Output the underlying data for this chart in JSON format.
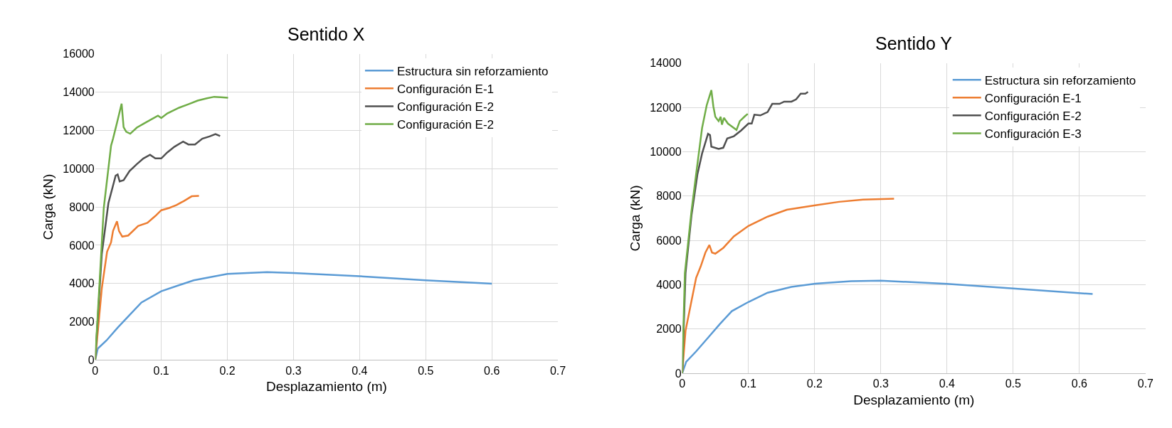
{
  "chart_data": [
    {
      "type": "line",
      "title": "Sentido X",
      "xlabel": "Desplazamiento (m)",
      "ylabel": "Carga (kN)",
      "xlim": [
        0,
        0.7
      ],
      "xticks": [
        0,
        0.1,
        0.2,
        0.3,
        0.4,
        0.5,
        0.6,
        0.7
      ],
      "ylim": [
        0,
        16000
      ],
      "yticks": [
        0,
        2000,
        4000,
        6000,
        8000,
        10000,
        12000,
        14000,
        16000
      ],
      "grid": true,
      "legend": "top right",
      "marker": "none",
      "line_style": "solid",
      "series": [
        {
          "name": "Estructura sin reforzamiento",
          "color": "#5b9bd5",
          "x": [
            0,
            0.004,
            0.017,
            0.034,
            0.052,
            0.07,
            0.1,
            0.149,
            0.2,
            0.26,
            0.3,
            0.4,
            0.5,
            0.6
          ],
          "values": [
            0,
            600,
            1020,
            1690,
            2350,
            3010,
            3600,
            4170,
            4500,
            4600,
            4550,
            4380,
            4170,
            3990
          ]
        },
        {
          "name": "Configuración E-1",
          "color": "#ed7d31",
          "x": [
            0,
            0.01,
            0.018,
            0.024,
            0.027,
            0.033,
            0.036,
            0.041,
            0.05,
            0.065,
            0.079,
            0.091,
            0.1,
            0.112,
            0.123,
            0.134,
            0.146,
            0.157
          ],
          "values": [
            0,
            3740,
            5660,
            6150,
            6750,
            7250,
            6750,
            6450,
            6510,
            7010,
            7170,
            7530,
            7830,
            7950,
            8100,
            8310,
            8560,
            8580
          ]
        },
        {
          "name": "Configuración E-2",
          "color": "#505050",
          "x": [
            0,
            0.01,
            0.02,
            0.031,
            0.034,
            0.037,
            0.043,
            0.052,
            0.063,
            0.073,
            0.083,
            0.091,
            0.1,
            0.109,
            0.12,
            0.133,
            0.141,
            0.151,
            0.162,
            0.173,
            0.182,
            0.189
          ],
          "values": [
            0,
            5540,
            8200,
            9640,
            9700,
            9340,
            9400,
            9880,
            10240,
            10540,
            10730,
            10540,
            10540,
            10850,
            11150,
            11420,
            11270,
            11270,
            11570,
            11690,
            11810,
            11710
          ]
        },
        {
          "name": "Configuración E-2",
          "color": "#70ad47",
          "x": [
            0,
            0.013,
            0.024,
            0.027,
            0.033,
            0.04,
            0.043,
            0.047,
            0.053,
            0.063,
            0.073,
            0.084,
            0.095,
            0.1,
            0.109,
            0.127,
            0.141,
            0.155,
            0.169,
            0.18,
            0.19,
            0.201
          ],
          "values": [
            0,
            7950,
            11200,
            11570,
            12400,
            13400,
            12170,
            11930,
            11830,
            12150,
            12350,
            12560,
            12770,
            12650,
            12890,
            13190,
            13370,
            13560,
            13680,
            13760,
            13740,
            13710
          ]
        }
      ]
    },
    {
      "type": "line",
      "title": "Sentido Y",
      "xlabel": "Desplazamiento (m)",
      "ylabel": "Carga (kN)",
      "xlim": [
        0,
        0.7
      ],
      "xticks": [
        0,
        0.1,
        0.2,
        0.3,
        0.4,
        0.5,
        0.6,
        0.7
      ],
      "ylim": [
        0,
        14000
      ],
      "yticks": [
        0,
        2000,
        4000,
        6000,
        8000,
        10000,
        12000,
        14000
      ],
      "grid": true,
      "legend": "top right",
      "marker": "none",
      "line_style": "solid",
      "series": [
        {
          "name": "Estructura sin reforzamiento",
          "color": "#5b9bd5",
          "x": [
            0,
            0.006,
            0.021,
            0.039,
            0.057,
            0.075,
            0.1,
            0.129,
            0.165,
            0.201,
            0.255,
            0.3,
            0.4,
            0.5,
            0.62
          ],
          "values": [
            0,
            520,
            990,
            1610,
            2230,
            2810,
            3220,
            3640,
            3900,
            4050,
            4160,
            4180,
            4040,
            3830,
            3580
          ]
        },
        {
          "name": "Configuración E-1",
          "color": "#ed7d31",
          "x": [
            0,
            0.005,
            0.014,
            0.021,
            0.028,
            0.035,
            0.041,
            0.045,
            0.05,
            0.062,
            0.078,
            0.1,
            0.129,
            0.158,
            0.201,
            0.237,
            0.273,
            0.32
          ],
          "values": [
            0,
            1920,
            3270,
            4310,
            4830,
            5450,
            5790,
            5450,
            5400,
            5660,
            6180,
            6650,
            7070,
            7380,
            7580,
            7740,
            7840,
            7880
          ]
        },
        {
          "name": "Configuración E-2",
          "color": "#505050",
          "x": [
            0,
            0.005,
            0.014,
            0.023,
            0.03,
            0.039,
            0.042,
            0.044,
            0.055,
            0.062,
            0.068,
            0.078,
            0.089,
            0.1,
            0.105,
            0.109,
            0.118,
            0.129,
            0.136,
            0.147,
            0.154,
            0.165,
            0.172,
            0.179,
            0.186,
            0.19
          ],
          "values": [
            0,
            4520,
            7120,
            8990,
            9920,
            10810,
            10750,
            10230,
            10130,
            10180,
            10600,
            10700,
            10960,
            11270,
            11270,
            11670,
            11640,
            11790,
            12160,
            12160,
            12260,
            12260,
            12360,
            12620,
            12620,
            12700
          ]
        },
        {
          "name": "Configuración E-3",
          "color": "#70ad47",
          "x": [
            0,
            0.004,
            0.014,
            0.021,
            0.03,
            0.037,
            0.044,
            0.047,
            0.05,
            0.055,
            0.058,
            0.06,
            0.063,
            0.069,
            0.082,
            0.087,
            0.095,
            0.099
          ],
          "values": [
            0,
            4520,
            7330,
            8990,
            11070,
            12100,
            12780,
            12050,
            11580,
            11380,
            11580,
            11220,
            11530,
            11270,
            10980,
            11380,
            11610,
            11710
          ]
        }
      ]
    }
  ]
}
